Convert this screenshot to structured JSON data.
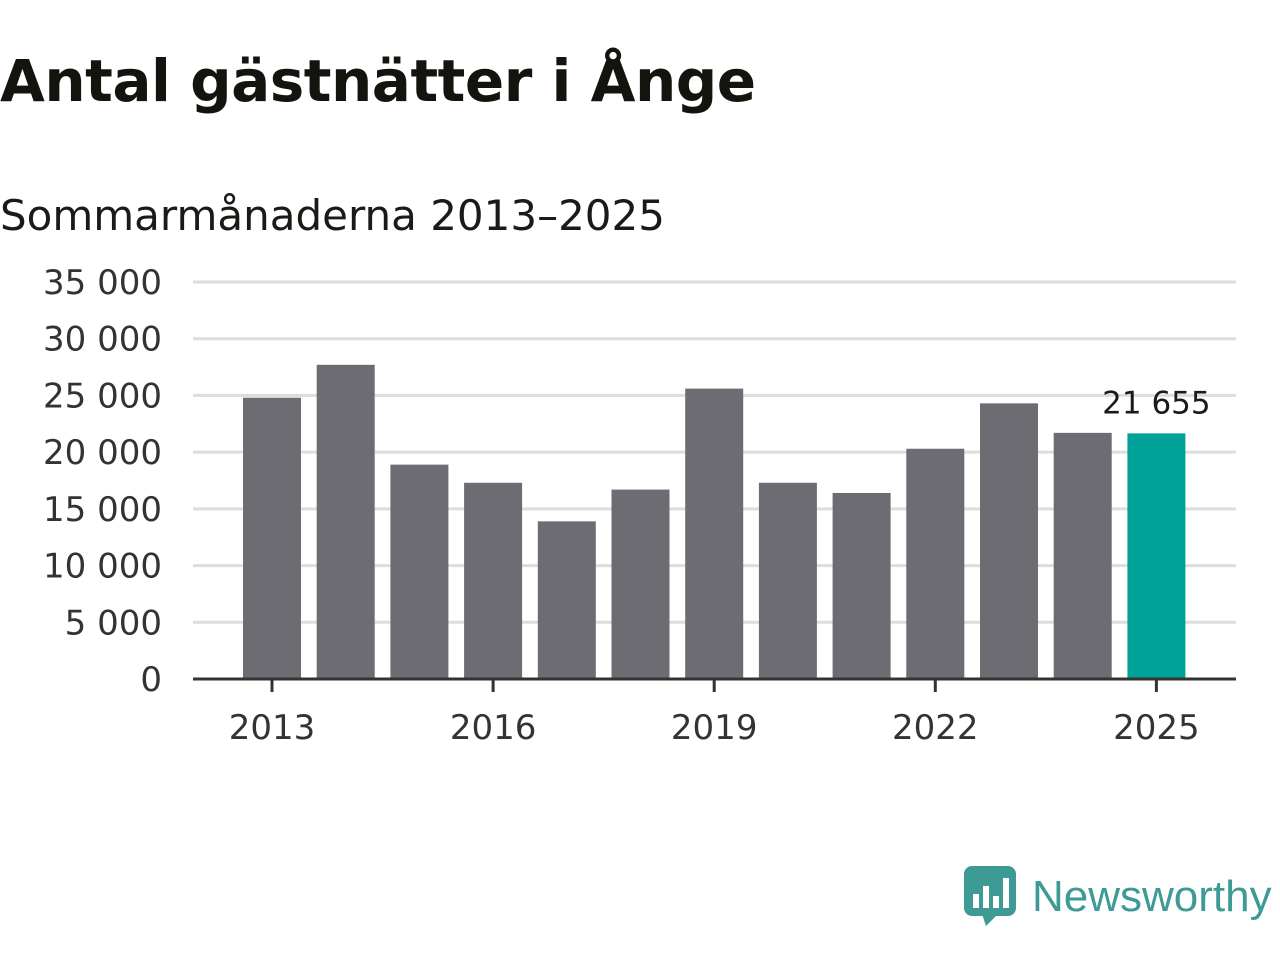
{
  "title": "Antal gästnätter i Ånge",
  "subtitle": "Sommarmånaderna 2013–2025",
  "brand": {
    "name": "Newsworthy",
    "logo_icon": "newsworthy-chart-bubble-icon",
    "color": "#3e9a95"
  },
  "colors": {
    "bar": "#6d6c72",
    "highlight": "#00a398",
    "grid": "#dddddd",
    "axis": "#333333"
  },
  "chart_data": {
    "type": "bar",
    "categories": [
      "2013",
      "2014",
      "2015",
      "2016",
      "2017",
      "2018",
      "2019",
      "2020",
      "2021",
      "2022",
      "2023",
      "2024",
      "2025"
    ],
    "values": [
      24800,
      27700,
      18900,
      17300,
      13900,
      16700,
      25600,
      17300,
      16400,
      20300,
      24300,
      21700,
      21655
    ],
    "highlight_index": 12,
    "annotations": [
      {
        "category": "2025",
        "text": "21 655"
      }
    ],
    "ylim": [
      0,
      35000
    ],
    "yticks": [
      0,
      5000,
      10000,
      15000,
      20000,
      25000,
      30000,
      35000
    ],
    "ytick_labels": [
      "0",
      "5 000",
      "10 000",
      "15 000",
      "20 000",
      "25 000",
      "30 000",
      "35 000"
    ],
    "xtick_labels": [
      "2013",
      "2016",
      "2019",
      "2022",
      "2025"
    ],
    "xlabel": "",
    "ylabel": "",
    "grid": true,
    "legend": "none"
  }
}
